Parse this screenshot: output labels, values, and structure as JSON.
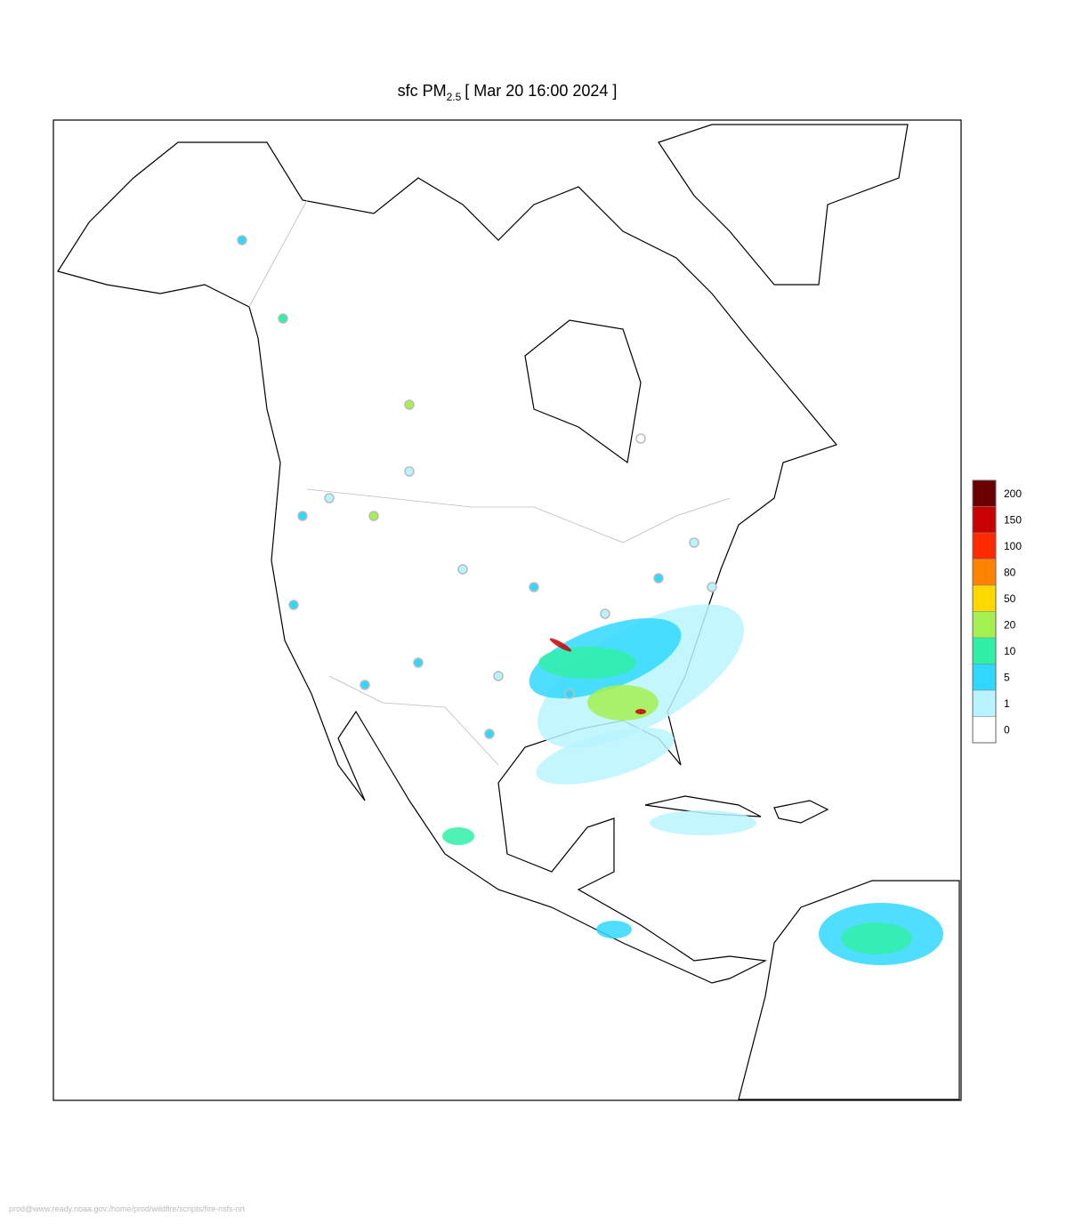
{
  "title": {
    "prefix": "sfc PM",
    "subscript": "2.5",
    "suffix": "[ Mar 20 16:00 2024 ]"
  },
  "legend": [
    {
      "label": "200",
      "color": "#6b0000"
    },
    {
      "label": "150",
      "color": "#c80000"
    },
    {
      "label": "100",
      "color": "#ff2a00"
    },
    {
      "label": "80",
      "color": "#ff8200"
    },
    {
      "label": "50",
      "color": "#ffd800"
    },
    {
      "label": "20",
      "color": "#a4f050"
    },
    {
      "label": "10",
      "color": "#30f0a8"
    },
    {
      "label": "5",
      "color": "#30d8ff"
    },
    {
      "label": "1",
      "color": "#b8f4ff"
    },
    {
      "label": "0",
      "color": "#ffffff"
    }
  ],
  "footer": "prod@www.ready.noaa.gov:/home/prod/wildfire/scripts/fire-nsfs-nrt"
}
